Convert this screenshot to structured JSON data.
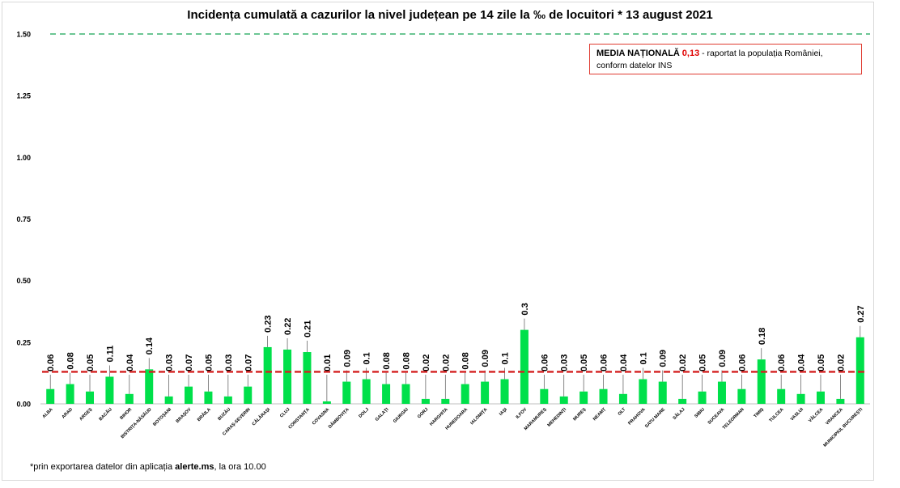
{
  "chart_data": {
    "type": "bar",
    "title": "Incidența cumulată a cazurilor la nivel județean pe 14 zile la ‰ de locuitori *  13 august 2021",
    "categories": [
      "ALBA",
      "ARAD",
      "ARGEȘ",
      "BACĂU",
      "BIHOR",
      "BISTRIȚA-NĂSĂUD",
      "BOTOȘANI",
      "BRAȘOV",
      "BRĂILA",
      "BUZĂU",
      "CARAȘ-SEVERIN",
      "CĂLĂRAȘI",
      "CLUJ",
      "CONSTANȚA",
      "COVASNA",
      "DÂMBOVIȚA",
      "DOLJ",
      "GALAȚI",
      "GIURGIU",
      "GORJ",
      "HARGHITA",
      "HUNEDOARA",
      "IALOMIȚA",
      "IAȘI",
      "ILFOV",
      "MARAMUREȘ",
      "MEHEDINȚI",
      "MUREȘ",
      "NEAMȚ",
      "OLT",
      "PRAHOVA",
      "SATU MARE",
      "SĂLAJ",
      "SIBIU",
      "SUCEAVA",
      "TELEORMAN",
      "TIMIȘ",
      "TULCEA",
      "VASLUI",
      "VÂLCEA",
      "VRANCEA",
      "MUNICIPIUL BUCUREȘTI"
    ],
    "values": [
      0.06,
      0.08,
      0.05,
      0.11,
      0.04,
      0.14,
      0.03,
      0.07,
      0.05,
      0.03,
      0.07,
      0.23,
      0.22,
      0.21,
      0.01,
      0.09,
      0.1,
      0.08,
      0.08,
      0.02,
      0.02,
      0.08,
      0.09,
      0.1,
      0.3,
      0.06,
      0.03,
      0.05,
      0.06,
      0.04,
      0.1,
      0.09,
      0.02,
      0.05,
      0.09,
      0.06,
      0.18,
      0.06,
      0.04,
      0.05,
      0.02,
      0.27
    ],
    "value_labels": [
      "0.06",
      "0.08",
      "0.05",
      "0.11",
      "0.04",
      "0.14",
      "0.03",
      "0.07",
      "0.05",
      "0.03",
      "0.07",
      "0.23",
      "0.22",
      "0.21",
      "0.01",
      "0.09",
      "0.1",
      "0.08",
      "0.08",
      "0.02",
      "0.02",
      "0.08",
      "0.09",
      "0.1",
      "0.3",
      "0.06",
      "0.03",
      "0.05",
      "0.06",
      "0.04",
      "0.1",
      "0.09",
      "0.02",
      "0.05",
      "0.09",
      "0.06",
      "0.18",
      "0.06",
      "0.04",
      "0.05",
      "0.02",
      "0.27"
    ],
    "ylim": [
      0,
      1.5
    ],
    "yticks": [
      "0.00",
      "0.25",
      "0.50",
      "0.75",
      "1.00",
      "1.25",
      "1.50"
    ],
    "ytick_values": [
      0,
      0.25,
      0.5,
      0.75,
      1.0,
      1.25,
      1.5
    ],
    "threshold_value": 1.5,
    "national_average": 0.13,
    "grid": false,
    "xlabel": "",
    "ylabel": ""
  },
  "legend": {
    "label": "MEDIA NAȚIONALĂ",
    "value": "0,13",
    "text1": " - raportat la populația României,",
    "text2": "conform datelor INS"
  },
  "footnote": {
    "prefix": "*prin exportarea  datelor din aplicația ",
    "app": "alerte.ms",
    "suffix": ",  la ora 10.00"
  },
  "colors": {
    "bar": "#00e04a",
    "average_line": "#d42020",
    "threshold_line": "#3cb371",
    "legend_border": "#e03c31"
  }
}
